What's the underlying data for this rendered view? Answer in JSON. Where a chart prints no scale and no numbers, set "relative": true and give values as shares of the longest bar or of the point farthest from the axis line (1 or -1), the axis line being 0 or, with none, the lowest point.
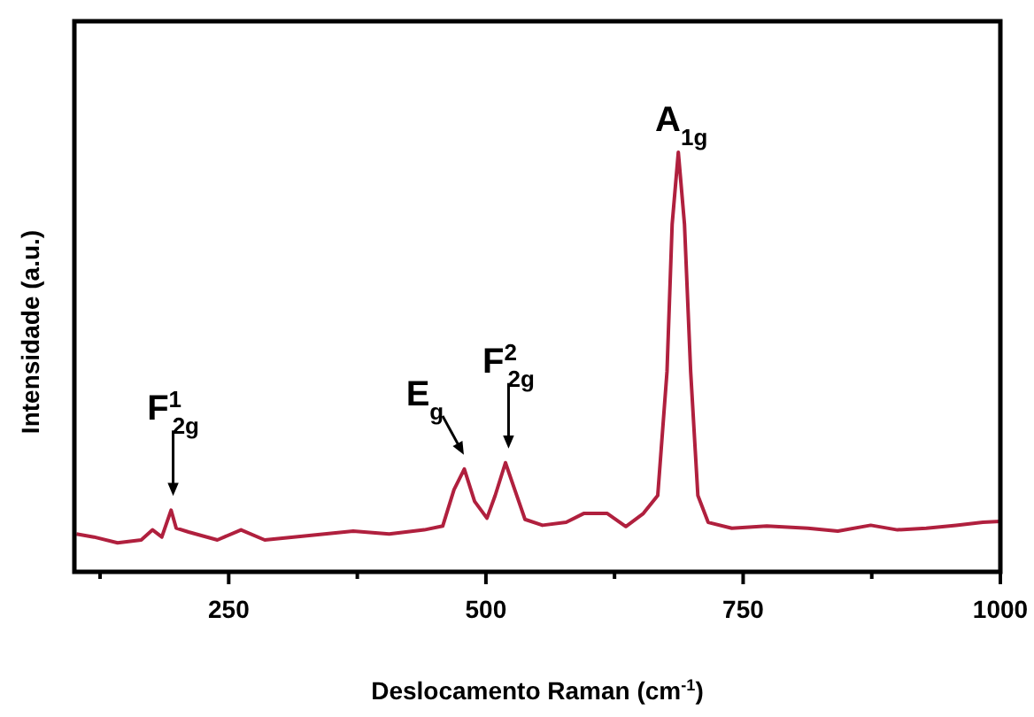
{
  "chart_data": {
    "type": "line",
    "relative": true,
    "xlabel": "Deslocamento Raman (cm$^{-1}$)",
    "ylabel": "Intensidade (a.u.)",
    "xlim": [
      100,
      1000
    ],
    "xticks": [
      {
        "value": 125,
        "label": null
      },
      250,
      {
        "value": 375,
        "label": null
      },
      500,
      {
        "value": 625,
        "label": null
      },
      750,
      {
        "value": 875,
        "label": null
      },
      1000
    ],
    "tick_labels": "x",
    "grid": false,
    "marker": "none",
    "line_style": "solid",
    "series": [
      {
        "color": "#b0203e",
        "x": [
          102,
          119,
          142,
          165,
          176,
          185,
          194,
          199,
          211,
          239,
          262,
          285,
          326,
          371,
          406,
          440,
          458,
          469,
          479,
          489,
          501,
          509,
          519,
          528,
          538,
          555,
          578,
          595,
          618,
          636,
          653,
          667,
          676,
          681,
          687,
          693,
          699,
          706,
          716,
          739,
          773,
          813,
          842,
          874,
          900,
          928,
          957,
          983,
          1000
        ],
        "values": [
          0.09,
          0.083,
          0.069,
          0.076,
          0.1,
          0.083,
          0.147,
          0.104,
          0.095,
          0.076,
          0.1,
          0.076,
          0.086,
          0.097,
          0.09,
          0.1,
          0.109,
          0.196,
          0.245,
          0.168,
          0.128,
          0.182,
          0.26,
          0.196,
          0.125,
          0.111,
          0.118,
          0.139,
          0.139,
          0.108,
          0.139,
          0.182,
          0.477,
          0.828,
          1,
          0.828,
          0.477,
          0.182,
          0.118,
          0.104,
          0.109,
          0.104,
          0.097,
          0.111,
          0.1,
          0.104,
          0.111,
          0.118,
          0.12
        ]
      }
    ],
    "annotations": [
      {
        "text": "F$^{1}$$_{2g}$",
        "x": 196,
        "y": 0.147
      },
      {
        "text": "E$_{g}$",
        "x": 482,
        "y": 0.245
      },
      {
        "text": "F$^{2}$$_{2g}$",
        "x": 522,
        "y": 0.26
      },
      {
        "text": "A$_{1g}$",
        "x": 690,
        "y": 1
      }
    ]
  }
}
